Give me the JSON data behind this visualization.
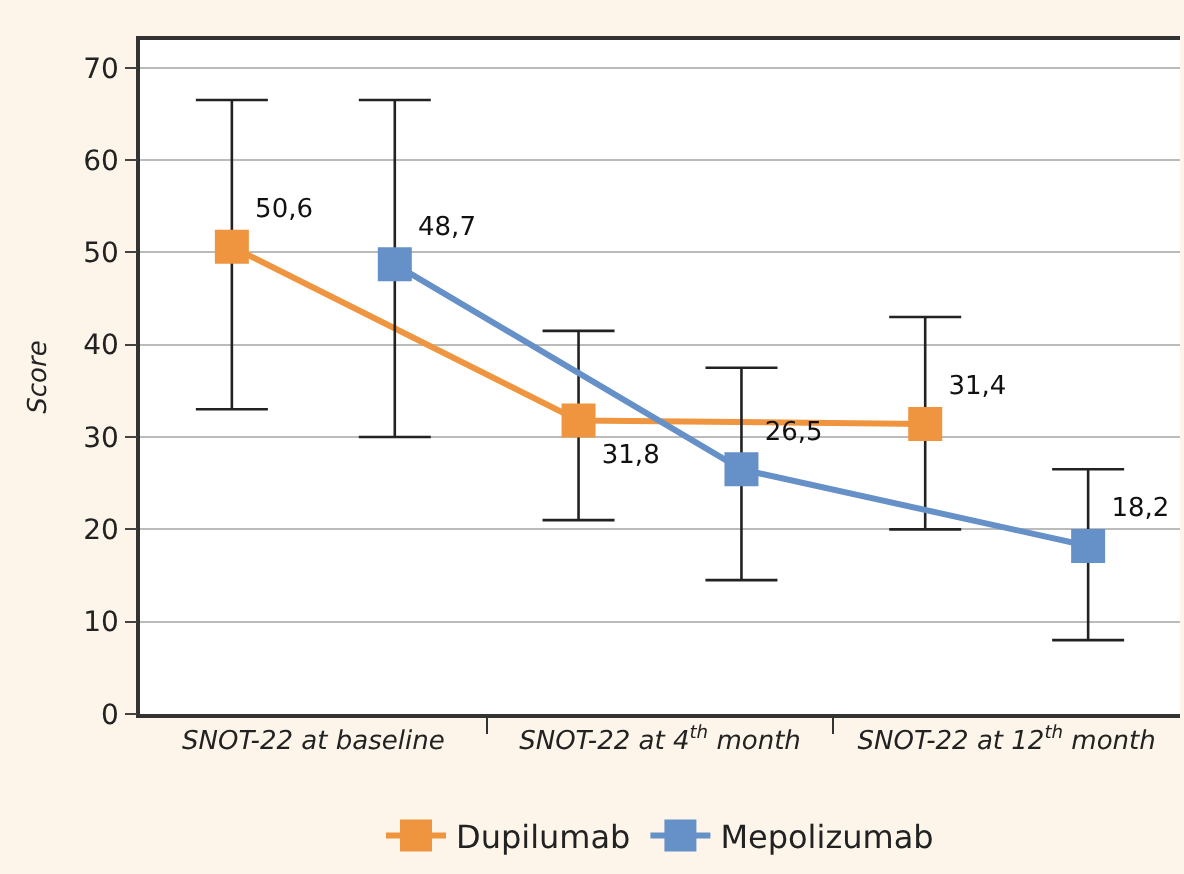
{
  "chart_data": {
    "type": "line",
    "ylabel": "Score",
    "categories": [
      "SNOT-22 at baseline",
      "SNOT-22 at 4$^{th}$ month",
      "SNOT-22 at 12$^{th}$ month"
    ],
    "series": [
      {
        "name": "Dupilumab",
        "color": "#f0953f",
        "values": [
          50.6,
          31.8,
          31.4
        ],
        "errors": [
          [
            33,
            66.5
          ],
          [
            21,
            41.5
          ],
          [
            20,
            43
          ]
        ],
        "value_labels": [
          "50,6",
          "31,8",
          "31,4"
        ]
      },
      {
        "name": "Mepolizumab",
        "color": "#6690c8",
        "values": [
          48.7,
          26.5,
          18.2
        ],
        "errors": [
          [
            30,
            66.5
          ],
          [
            14.5,
            37.5
          ],
          [
            8,
            26.5
          ]
        ],
        "value_labels": [
          "48,7",
          "26,5",
          "18,2"
        ]
      }
    ],
    "ylim": [
      0,
      73
    ],
    "yticks": [
      0,
      10,
      20,
      30,
      40,
      50,
      60,
      70
    ],
    "grid": "y",
    "legend": "bottom",
    "marker": "square",
    "line_style": "solid"
  }
}
